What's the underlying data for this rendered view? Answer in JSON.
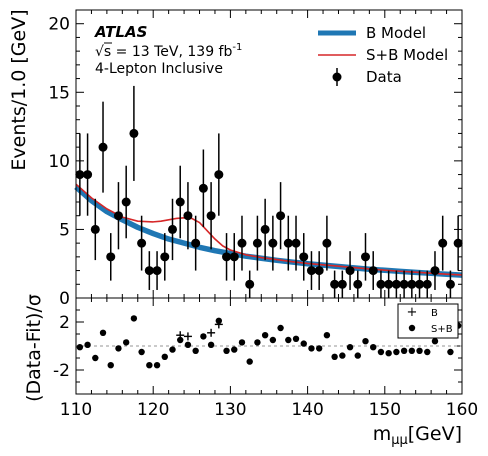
{
  "chart_data": {
    "type": "scatter",
    "x_range": [
      110,
      160
    ],
    "xlabel_base": "m",
    "xlabel_sub": "μμ",
    "xlabel_unit": "[GeV]",
    "annotations": {
      "experiment": "ATLAS",
      "sqrt": "√",
      "energy_text": "s = 13 TeV, 139 fb",
      "energy_sup": "-1",
      "selection": "4-Lepton Inclusive"
    },
    "top_panel": {
      "ylabel": "Events/1.0 [GeV]",
      "ylim": [
        0,
        21
      ],
      "yticks": [
        0,
        5,
        10,
        15,
        20
      ],
      "legend": {
        "placement": "top-right",
        "b_model": "B Model",
        "sb_model": "S+B Model",
        "data": "Data"
      },
      "colors": {
        "b_model": "#1f77b4",
        "sb_model": "#d62728",
        "data": "#000000"
      },
      "data": {
        "x": [
          110.5,
          111.5,
          112.5,
          113.5,
          114.5,
          115.5,
          116.5,
          117.5,
          118.5,
          119.5,
          120.5,
          121.5,
          122.5,
          123.5,
          124.5,
          125.5,
          126.5,
          127.5,
          128.5,
          129.5,
          130.5,
          131.5,
          132.5,
          133.5,
          134.5,
          135.5,
          136.5,
          137.5,
          138.5,
          139.5,
          140.5,
          141.5,
          142.5,
          143.5,
          144.5,
          145.5,
          146.5,
          147.5,
          148.5,
          149.5,
          150.5,
          151.5,
          152.5,
          153.5,
          154.5,
          155.5,
          156.5,
          157.5,
          158.5,
          159.5
        ],
        "y": [
          9,
          9,
          5,
          11,
          3,
          6,
          7,
          12,
          4,
          2,
          2,
          3,
          5,
          7,
          6,
          4,
          8,
          6,
          9,
          3,
          3,
          4,
          1,
          4,
          5,
          4,
          6,
          4,
          4,
          3,
          2,
          2,
          4,
          1,
          1,
          2,
          1,
          3,
          2,
          1,
          1,
          1,
          1,
          1,
          1,
          1,
          2,
          4,
          1,
          4
        ]
      },
      "b_model": {
        "x": [
          110,
          112,
          114,
          116,
          118,
          120,
          122,
          124,
          126,
          128,
          130,
          132,
          134,
          136,
          138,
          140,
          142,
          144,
          146,
          148,
          150,
          152,
          154,
          156,
          158,
          160
        ],
        "y": [
          8.1,
          7.1,
          6.3,
          5.7,
          5.15,
          4.7,
          4.3,
          4.0,
          3.7,
          3.45,
          3.25,
          3.05,
          2.9,
          2.75,
          2.62,
          2.5,
          2.4,
          2.3,
          2.2,
          2.1,
          2.02,
          1.94,
          1.87,
          1.8,
          1.73,
          1.67
        ]
      },
      "sb_model": {
        "x": [
          110,
          112,
          114,
          116,
          118,
          120,
          121,
          122,
          123,
          124,
          125,
          126,
          127,
          128,
          129,
          130,
          132,
          134,
          136,
          138,
          140,
          142,
          144,
          146,
          148,
          150,
          152,
          154,
          156,
          158,
          160
        ],
        "y": [
          8.3,
          7.3,
          6.5,
          5.9,
          5.6,
          5.55,
          5.6,
          5.7,
          5.8,
          5.85,
          5.8,
          5.5,
          4.9,
          4.3,
          3.8,
          3.5,
          3.15,
          2.95,
          2.8,
          2.65,
          2.52,
          2.42,
          2.32,
          2.22,
          2.12,
          2.03,
          1.95,
          1.88,
          1.81,
          1.74,
          1.68
        ]
      }
    },
    "bottom_panel": {
      "ylabel": "(Data-Fit)/σ",
      "ylim": [
        -4,
        4
      ],
      "yticks": [
        -2,
        2
      ],
      "legend": {
        "placement": "top-right",
        "b": "B",
        "sb": "S+B"
      },
      "b_residuals": {
        "x": [
          123.5,
          124.5,
          127.5,
          128.5
        ],
        "y": [
          0.9,
          0.8,
          1.1,
          1.8
        ]
      },
      "sb_residuals": {
        "x": [
          110.5,
          111.5,
          112.5,
          113.5,
          114.5,
          115.5,
          116.5,
          117.5,
          118.5,
          119.5,
          120.5,
          121.5,
          122.5,
          123.5,
          124.5,
          125.5,
          126.5,
          127.5,
          128.5,
          129.5,
          130.5,
          131.5,
          132.5,
          133.5,
          134.5,
          135.5,
          136.5,
          137.5,
          138.5,
          139.5,
          140.5,
          141.5,
          142.5,
          143.5,
          144.5,
          145.5,
          146.5,
          147.5,
          148.5,
          149.5,
          150.5,
          151.5,
          152.5,
          153.5,
          154.5,
          155.5,
          156.5,
          157.5,
          158.5,
          159.5
        ],
        "y": [
          -0.1,
          0.1,
          -1.0,
          1.1,
          -1.6,
          -0.2,
          0.3,
          2.3,
          -0.5,
          -1.6,
          -1.6,
          -0.9,
          -0.3,
          0.5,
          0.1,
          -0.4,
          0.8,
          0.1,
          2.1,
          -0.4,
          -0.3,
          0.3,
          -1.3,
          0.3,
          0.9,
          0.5,
          1.5,
          0.5,
          0.6,
          0.2,
          -0.2,
          -0.2,
          0.9,
          -0.9,
          -0.8,
          -0.1,
          -0.8,
          0.4,
          -0.1,
          -0.5,
          -0.6,
          -0.5,
          -0.4,
          -0.4,
          -0.4,
          -0.5,
          0.4,
          1.6,
          -0.5,
          1.7
        ]
      }
    }
  }
}
